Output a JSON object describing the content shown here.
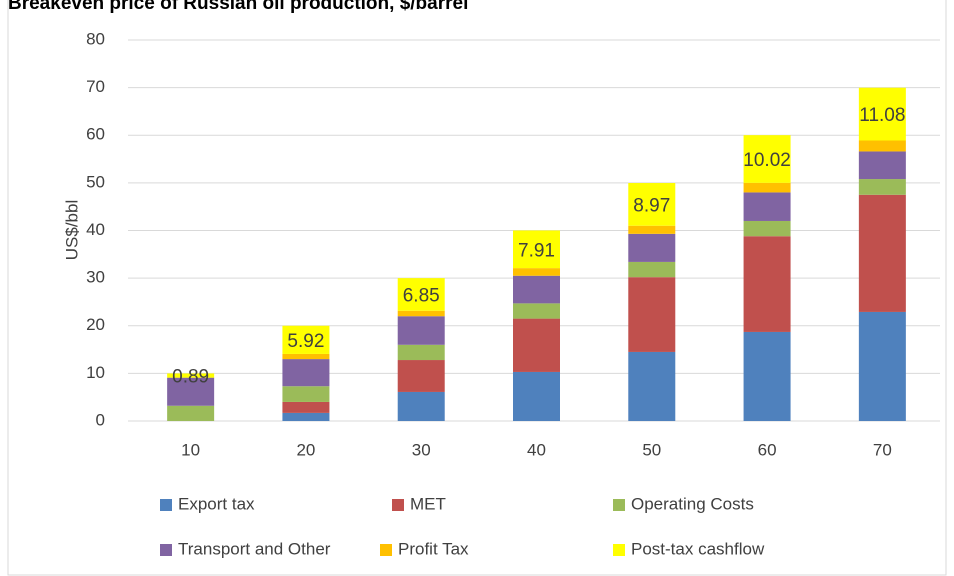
{
  "chart_data": {
    "type": "stacked_bar",
    "title": "Breakeven price of Russian oil production, $/barrel",
    "y_label": "US$/bbl",
    "categories": [
      "10",
      "20",
      "30",
      "40",
      "50",
      "60",
      "70"
    ],
    "series": [
      {
        "name": "Export tax",
        "color": "#4f81bd",
        "values": [
          0,
          1.7,
          6.1,
          10.3,
          14.5,
          18.7,
          22.9
        ]
      },
      {
        "name": "MET",
        "color": "#c0504d",
        "values": [
          0,
          2.3,
          6.7,
          11.2,
          15.7,
          20.1,
          24.6
        ]
      },
      {
        "name": "Operating Costs",
        "color": "#9bbb59",
        "values": [
          3.2,
          3.3,
          3.2,
          3.2,
          3.2,
          3.2,
          3.3
        ]
      },
      {
        "name": "Transport and Other",
        "color": "#8064a2",
        "values": [
          5.9,
          5.7,
          6.0,
          5.8,
          5.9,
          6.0,
          5.8
        ]
      },
      {
        "name": "Profit Tax",
        "color": "#ffc000",
        "values": [
          0,
          1.08,
          1.15,
          1.6,
          1.7,
          2.0,
          2.3
        ]
      },
      {
        "name": "Post-tax cashflow",
        "color": "#ffff00",
        "values": [
          0.89,
          5.92,
          6.85,
          7.91,
          8.97,
          10.02,
          11.08
        ],
        "labels": true
      }
    ],
    "ylim": [
      0,
      80
    ],
    "yticks": [
      0,
      10,
      20,
      30,
      40,
      50,
      60,
      70,
      80
    ],
    "grid": true,
    "legend": "bottom"
  }
}
